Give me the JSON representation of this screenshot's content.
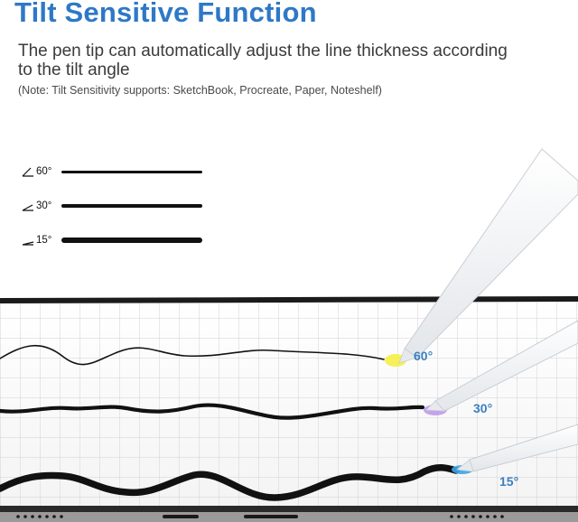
{
  "header": {
    "title": "Tilt Sensitive Function",
    "description": "The pen tip can automatically adjust the line thickness according to the tilt angle",
    "note": "(Note: Tilt Sensitivity supports: SketchBook, Procreate, Paper, Noteshelf)"
  },
  "legend": [
    {
      "angle": "60°",
      "icon": "angle-icon"
    },
    {
      "angle": "30°",
      "icon": "angle-icon"
    },
    {
      "angle": "15°",
      "icon": "angle-icon"
    }
  ],
  "tilt_labels": [
    {
      "angle": "60°",
      "tip_color": "#f6ef3c"
    },
    {
      "angle": "30°",
      "tip_color": "#b98ee8"
    },
    {
      "angle": "15°",
      "tip_color": "#3aa6e8"
    }
  ],
  "colors": {
    "title": "#2e78c7",
    "label": "#3c7fc0",
    "ink": "#111111",
    "grid": "#cfcfcf",
    "tablet_frame": "#1a1a1a"
  }
}
